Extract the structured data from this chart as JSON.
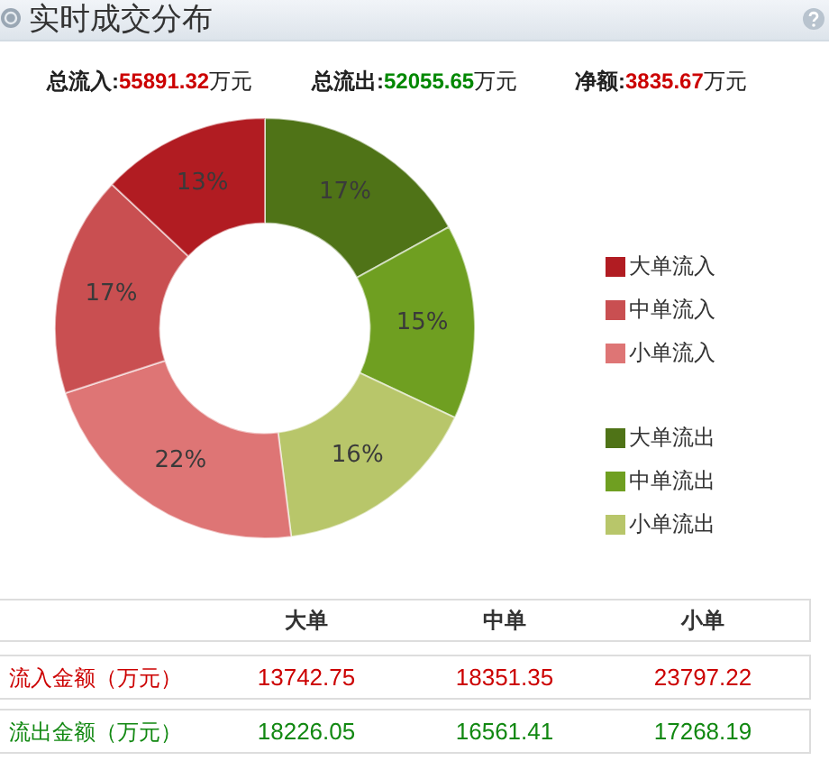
{
  "chart_data": {
    "type": "donut",
    "title": "实时成交分布",
    "annotations": [
      "总流入:55891.32万元",
      "总流出:52055.65万元",
      "净额:3835.67万元",
      "大单",
      "中单",
      "小单",
      "流入金额（万元）",
      "13742.75",
      "18351.35",
      "23797.22",
      "流出金额（万元）",
      "18226.05",
      "16561.41",
      "17268.19"
    ],
    "categories": [
      "大单流出",
      "中单流出",
      "小单流出",
      "小单流入",
      "中单流入",
      "大单流入"
    ],
    "values": [
      17,
      15,
      16,
      22,
      17,
      13
    ],
    "colors": [
      "#4f7317",
      "#6f9f21",
      "#b8c66a",
      "#de7575",
      "#c94f51",
      "#b11c22"
    ],
    "value_labels": [
      "17%",
      "15%",
      "16%",
      "22%",
      "17%",
      "13%"
    ],
    "legend": "right"
  }
}
